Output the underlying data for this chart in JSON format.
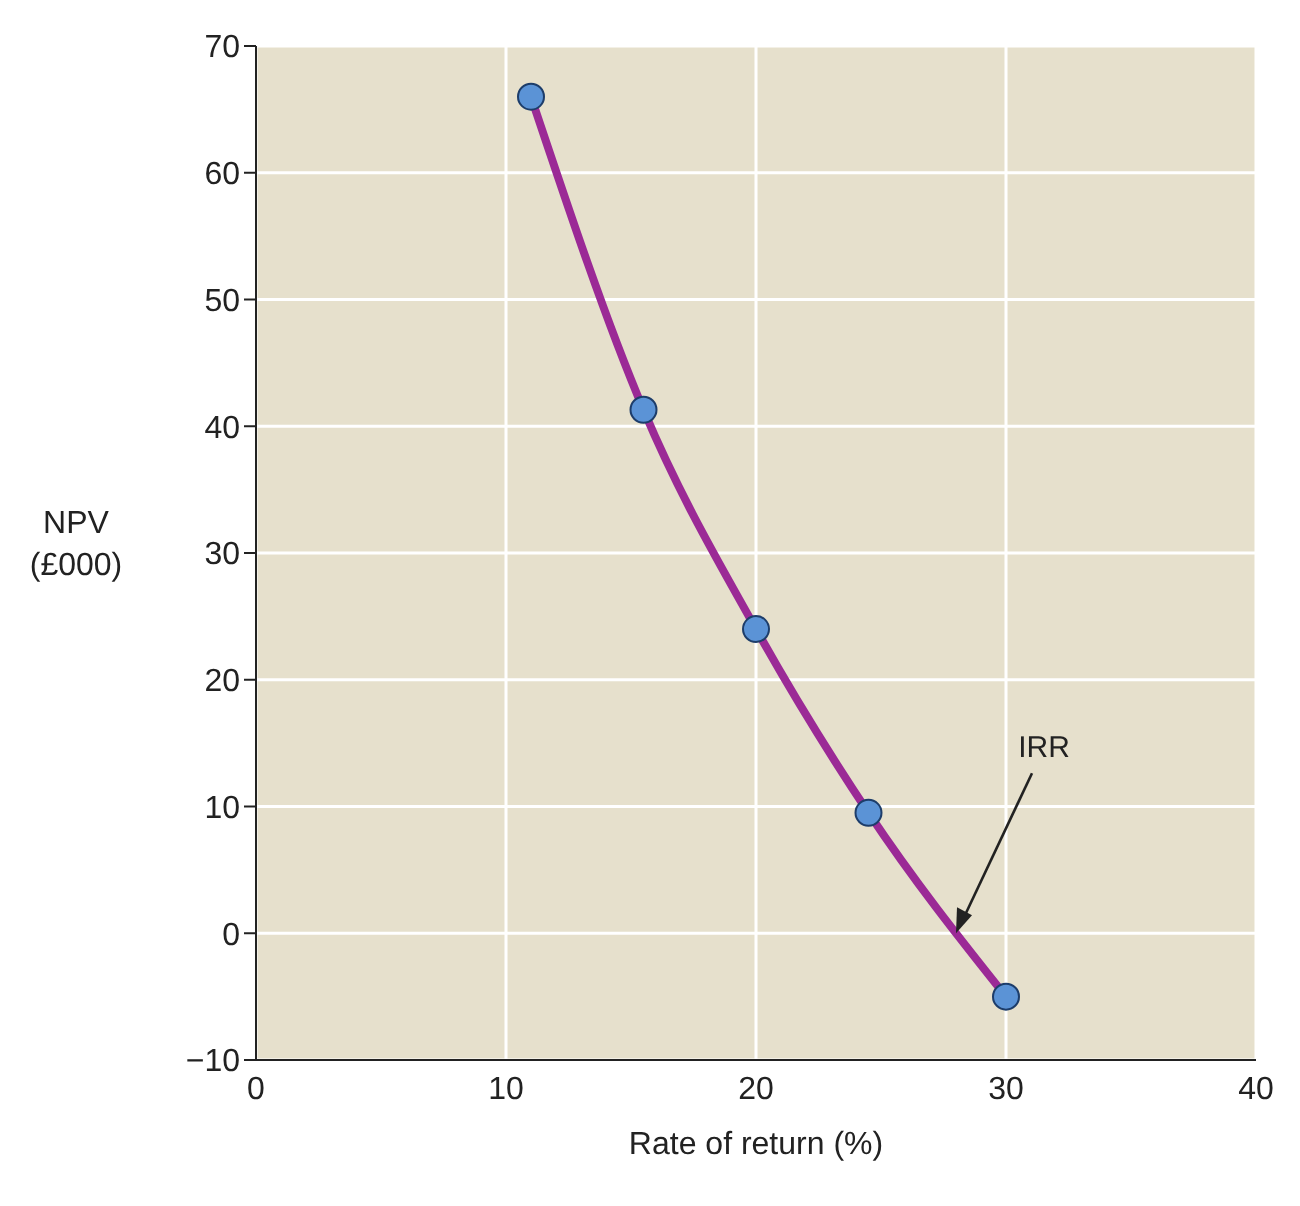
{
  "chart_data": {
    "type": "line",
    "xlabel": "Rate of return (%)",
    "ylabel": "NPV (£000)",
    "x": [
      11,
      15.5,
      20,
      24.5,
      30
    ],
    "series": [
      {
        "color": "#9b2a96",
        "values": [
          66,
          41.3,
          24,
          9.5,
          -5
        ]
      }
    ],
    "xlim": [
      0,
      40
    ],
    "xticks": [
      0,
      10,
      20,
      30,
      40
    ],
    "ylim": [
      -10,
      70
    ],
    "yticks": [
      -10,
      0,
      10,
      20,
      30,
      40,
      50,
      60,
      70
    ],
    "grid": true,
    "marker": "circle",
    "line_style": "solid",
    "annotations": [
      {
        "text": "IRR",
        "x": 28,
        "y": 0
      }
    ]
  }
}
